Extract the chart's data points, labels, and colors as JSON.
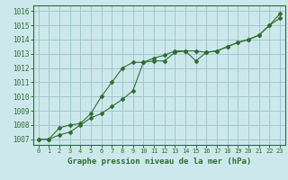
{
  "title": "Graphe pression niveau de la mer (hPa)",
  "background_color": "#cde8ec",
  "grid_color": "#a0c8cc",
  "line_color": "#2d6e2d",
  "marker_color": "#2d6e2d",
  "x_labels": [
    "0",
    "1",
    "2",
    "3",
    "4",
    "5",
    "6",
    "7",
    "8",
    "9",
    "10",
    "11",
    "12",
    "13",
    "14",
    "15",
    "16",
    "17",
    "18",
    "19",
    "20",
    "21",
    "22",
    "23"
  ],
  "xlim": [
    -0.5,
    23.5
  ],
  "ylim": [
    1006.6,
    1016.4
  ],
  "yticks": [
    1007,
    1008,
    1009,
    1010,
    1011,
    1012,
    1013,
    1014,
    1015,
    1016
  ],
  "series1_x": [
    0,
    1,
    2,
    3,
    4,
    5,
    6,
    7,
    8,
    9,
    10,
    11,
    12,
    13,
    14,
    15,
    16,
    17,
    18,
    19,
    20,
    21,
    22,
    23
  ],
  "series1_y": [
    1007.0,
    1007.0,
    1007.3,
    1007.5,
    1008.0,
    1008.5,
    1008.8,
    1009.3,
    1009.8,
    1010.4,
    1012.4,
    1012.5,
    1012.5,
    1013.1,
    1013.2,
    1012.5,
    1013.1,
    1013.2,
    1013.5,
    1013.8,
    1014.0,
    1014.3,
    1015.0,
    1015.8
  ],
  "series2_x": [
    0,
    1,
    2,
    3,
    4,
    5,
    6,
    7,
    8,
    9,
    10,
    11,
    12,
    13,
    14,
    15,
    16,
    17,
    18,
    19,
    20,
    21,
    22,
    23
  ],
  "series2_y": [
    1007.0,
    1007.0,
    1007.8,
    1008.0,
    1008.1,
    1008.8,
    1010.0,
    1011.0,
    1012.0,
    1012.4,
    1012.4,
    1012.7,
    1012.9,
    1013.2,
    1013.2,
    1013.2,
    1013.1,
    1013.2,
    1013.5,
    1013.8,
    1014.0,
    1014.3,
    1015.0,
    1015.5
  ]
}
